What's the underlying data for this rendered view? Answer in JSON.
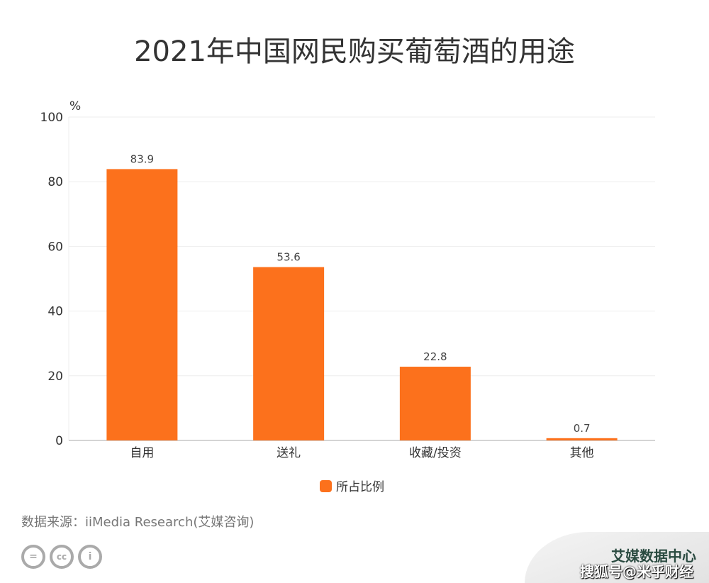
{
  "chart_data": {
    "type": "bar",
    "title": "2021年中国网民购买葡萄酒的用途",
    "ylabel": "%",
    "categories": [
      "自用",
      "送礼",
      "收藏/投资",
      "其他"
    ],
    "series": [
      {
        "name": "所占比例",
        "values": [
          83.9,
          53.6,
          22.8,
          0.7
        ]
      }
    ],
    "ylim": [
      0,
      100
    ],
    "yticks": [
      0,
      20,
      40,
      60,
      80,
      100
    ],
    "grid": true,
    "legend": "bottom",
    "color": "#FC711C"
  },
  "footer": {
    "source": "数据来源：iiMedia Research(艾媒咨询)",
    "cc_icons": [
      "equals-icon",
      "cc-icon",
      "person-icon"
    ]
  },
  "watermark": {
    "line1": "艾媒数据中心",
    "line2": "搜狐号@米乎财经"
  }
}
